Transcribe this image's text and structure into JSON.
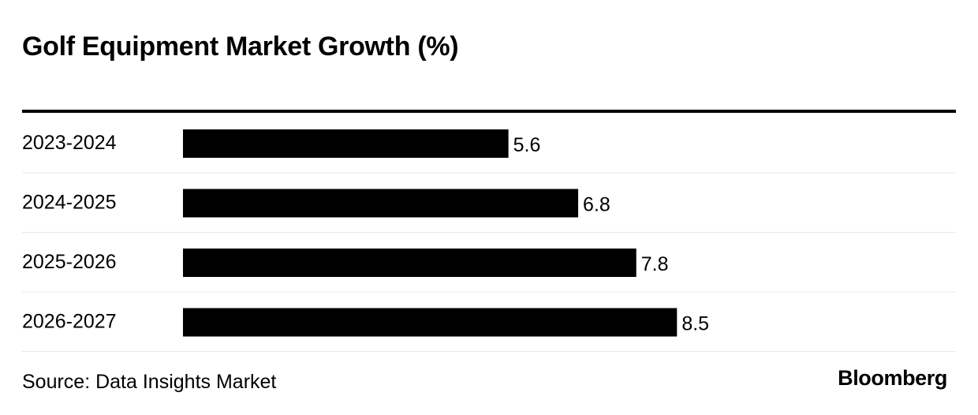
{
  "header": {
    "title": "Golf Equipment Market Growth (%)"
  },
  "footer": {
    "source": "Source: Data Insights Market",
    "brand": "Bloomberg"
  },
  "colors": {
    "bar": "#000000",
    "text": "#000000",
    "separator": "#e8e8e8",
    "background": "#ffffff"
  },
  "chart_data": {
    "type": "bar",
    "orientation": "horizontal",
    "categories": [
      "2023-2024",
      "2024-2025",
      "2025-2026",
      "2026-2027"
    ],
    "values": [
      5.6,
      6.8,
      7.8,
      8.5
    ],
    "value_labels": [
      "5.6",
      "6.8",
      "7.8",
      "8.5"
    ],
    "title": "Golf Equipment Market Growth (%)",
    "xlabel": "",
    "ylabel": "",
    "xlim": [
      0,
      13.3
    ],
    "grid": false,
    "legend": "none"
  }
}
